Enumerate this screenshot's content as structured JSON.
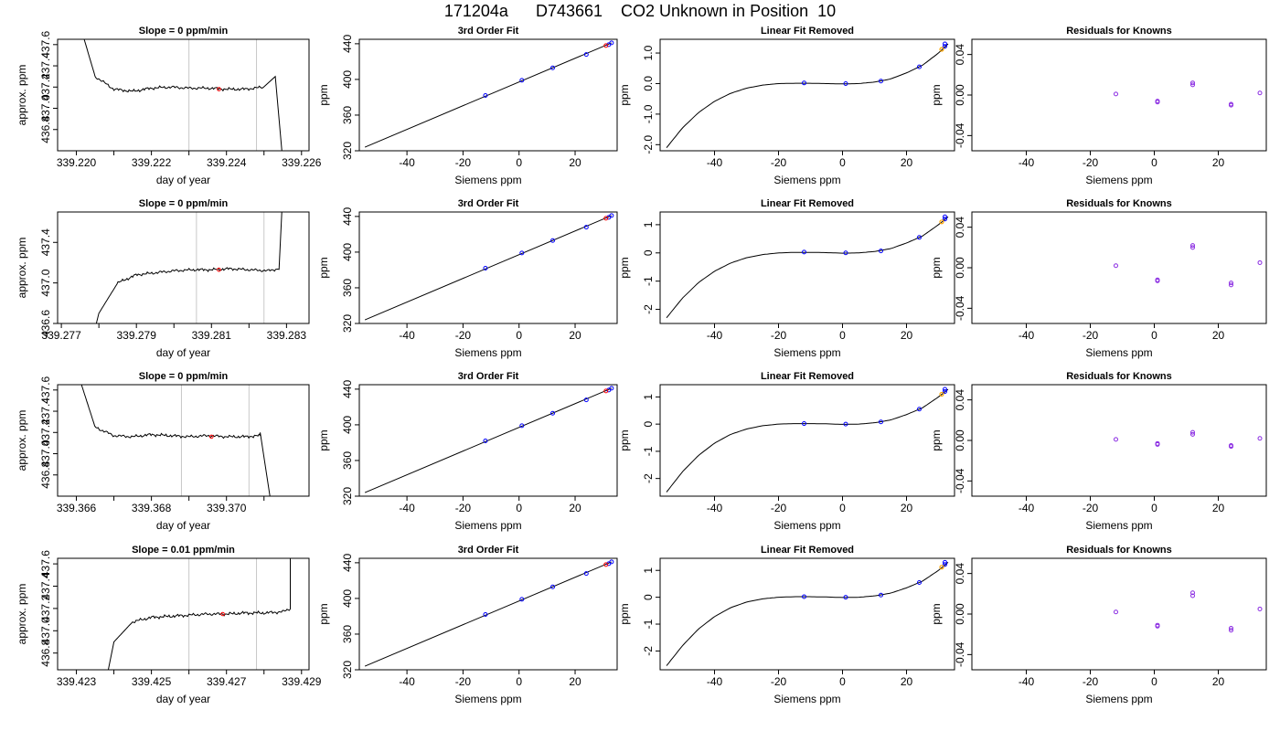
{
  "figure": {
    "title": "171204a      D743661    CO2 Unknown in Position  10"
  },
  "chart_data": [
    {
      "type": "line",
      "panel": "timeseries",
      "row": 0,
      "title": "Slope =  0  ppm/min",
      "xlabel": "day of year",
      "ylabel": "approx. ppm",
      "xlim": [
        339.2195,
        339.2262
      ],
      "ylim": [
        436.6,
        437.65
      ],
      "xticks": [
        339.22,
        339.221,
        339.222,
        339.223,
        339.224,
        339.225,
        339.226
      ],
      "xticklabels": [
        "339.220",
        "",
        "339.222",
        "",
        "339.224",
        "",
        "339.226"
      ],
      "yticks": [
        436.8,
        437.0,
        437.2,
        437.4,
        437.6
      ],
      "yticklabels": [
        "436.8",
        "437.0",
        "437.2",
        "437.4",
        "437.6"
      ],
      "vlines": [
        339.223,
        339.2248
      ],
      "shape": {
        "start": 437.9,
        "start_x": 339.2196,
        "end": 436.5,
        "end_x": 339.2255,
        "rise_x": 339.2253,
        "rise_peak": 437.3
      },
      "x": [
        339.22,
        339.2205,
        339.221,
        339.2215,
        339.222,
        339.2225,
        339.223,
        339.2235,
        339.224,
        339.2245,
        339.225
      ],
      "y": [
        437.9,
        437.3,
        437.18,
        437.16,
        437.19,
        437.2,
        437.19,
        437.19,
        437.18,
        437.18,
        437.2
      ],
      "marker": {
        "x": 339.2238,
        "y": 437.18
      }
    },
    {
      "type": "line",
      "panel": "fit",
      "row": 0,
      "title": "3rd Order Fit",
      "xlabel": "Siemens ppm",
      "ylabel": "ppm",
      "xlim": [
        -57,
        35
      ],
      "ylim": [
        320,
        445
      ],
      "xticks": [
        -40,
        -20,
        0,
        20
      ],
      "yticks": [
        320,
        360,
        400,
        440
      ],
      "line": {
        "x": [
          -55,
          33
        ],
        "y": [
          324,
          441
        ]
      },
      "points": {
        "x": [
          -12,
          1,
          12,
          24,
          32,
          33
        ],
        "y": [
          382,
          399,
          413,
          428,
          439,
          441
        ]
      },
      "unknown": {
        "x": 31,
        "y": 438
      }
    },
    {
      "type": "line",
      "panel": "linear_removed",
      "row": 0,
      "title": "Linear Fit Removed",
      "xlabel": "Siemens ppm",
      "ylabel": "ppm",
      "xlim": [
        -57,
        35
      ],
      "ylim": [
        -2.2,
        1.45
      ],
      "xticks": [
        -40,
        -20,
        0,
        20
      ],
      "yticks": [
        -2.0,
        -1.0,
        0.0,
        1.0
      ],
      "yticklabels": [
        "-2.0",
        "-1.0",
        "0.0",
        "1.0"
      ],
      "curve_x": [
        -55,
        -50,
        -45,
        -40,
        -35,
        -30,
        -25,
        -20,
        -15,
        -10,
        -5,
        0,
        5,
        10,
        15,
        20,
        25,
        30,
        33
      ],
      "curve_y": [
        -2.1,
        -1.45,
        -0.95,
        -0.58,
        -0.32,
        -0.15,
        -0.05,
        0.0,
        0.01,
        0.01,
        0.0,
        -0.01,
        0.0,
        0.05,
        0.15,
        0.35,
        0.6,
        1.0,
        1.3
      ],
      "points": {
        "x": [
          -12,
          1,
          12,
          24,
          32,
          32
        ],
        "y": [
          0.02,
          0.0,
          0.08,
          0.55,
          1.22,
          1.3
        ]
      },
      "unknown": {
        "x": 31,
        "y": 1.12
      }
    },
    {
      "type": "scatter",
      "panel": "residuals",
      "row": 0,
      "title": "Residuals for Knowns",
      "xlabel": "Siemens ppm",
      "ylabel": "ppm",
      "xlim": [
        -57,
        35
      ],
      "ylim": [
        -0.055,
        0.055
      ],
      "xticks": [
        -40,
        -20,
        0,
        20
      ],
      "yticks": [
        -0.04,
        0.0,
        0.04
      ],
      "yticklabels": [
        "-0.04",
        "0.00",
        "0.04"
      ],
      "points": {
        "x": [
          -12,
          1,
          1,
          12,
          12,
          24,
          24,
          33
        ],
        "y": [
          0.001,
          -0.006,
          -0.007,
          0.01,
          0.012,
          -0.009,
          -0.01,
          0.002
        ]
      }
    },
    {
      "type": "line",
      "panel": "timeseries",
      "row": 1,
      "title": "Slope =  0  ppm/min",
      "xlabel": "day of year",
      "ylabel": "approx. ppm",
      "xlim": [
        339.2769,
        339.2836
      ],
      "ylim": [
        436.6,
        437.7
      ],
      "xticks": [
        339.277,
        339.278,
        339.279,
        339.28,
        339.281,
        339.282,
        339.283
      ],
      "xticklabels": [
        "339.277",
        "",
        "339.279",
        "",
        "339.281",
        "",
        "339.283"
      ],
      "yticks": [
        436.6,
        437.0,
        437.4
      ],
      "yticklabels": [
        "436.6",
        "437.0",
        "437.4"
      ],
      "vlines": [
        339.2806,
        339.2824
      ],
      "shape": {
        "start": 436.4,
        "start_x": 339.2778,
        "end": 437.9,
        "end_x": 339.2833,
        "rise_x": 339.2829,
        "rise_peak": 437.9
      },
      "x": [
        339.278,
        339.2785,
        339.279,
        339.2795,
        339.28,
        339.2805,
        339.281,
        339.2815,
        339.282,
        339.2825,
        339.2828
      ],
      "y": [
        436.7,
        437.0,
        437.08,
        437.1,
        437.12,
        437.13,
        437.13,
        437.14,
        437.13,
        437.12,
        437.14
      ],
      "marker": {
        "x": 339.2812,
        "y": 437.13
      }
    },
    {
      "type": "line",
      "panel": "fit",
      "row": 1,
      "title": "3rd Order Fit",
      "xlabel": "Siemens ppm",
      "ylabel": "ppm",
      "xlim": [
        -57,
        35
      ],
      "ylim": [
        320,
        445
      ],
      "xticks": [
        -40,
        -20,
        0,
        20
      ],
      "yticks": [
        320,
        360,
        400,
        440
      ],
      "line": {
        "x": [
          -55,
          33
        ],
        "y": [
          324,
          441
        ]
      },
      "points": {
        "x": [
          -12,
          1,
          12,
          24,
          32,
          33
        ],
        "y": [
          382,
          399,
          413,
          428,
          439,
          441
        ]
      },
      "unknown": {
        "x": 31,
        "y": 438
      }
    },
    {
      "type": "line",
      "panel": "linear_removed",
      "row": 1,
      "title": "Linear Fit Removed",
      "xlabel": "Siemens ppm",
      "ylabel": "ppm",
      "xlim": [
        -57,
        35
      ],
      "ylim": [
        -2.5,
        1.45
      ],
      "xticks": [
        -40,
        -20,
        0,
        20
      ],
      "yticks": [
        -2,
        -1,
        0,
        1
      ],
      "yticklabels": [
        "-2",
        "-1",
        "0",
        "1"
      ],
      "curve_x": [
        -55,
        -50,
        -45,
        -40,
        -35,
        -30,
        -25,
        -20,
        -15,
        -10,
        -5,
        0,
        5,
        10,
        15,
        20,
        25,
        30,
        33
      ],
      "curve_y": [
        -2.3,
        -1.6,
        -1.05,
        -0.65,
        -0.36,
        -0.17,
        -0.06,
        0.0,
        0.02,
        0.02,
        0.01,
        -0.01,
        0.0,
        0.05,
        0.15,
        0.35,
        0.6,
        1.0,
        1.28
      ],
      "points": {
        "x": [
          -12,
          1,
          12,
          24,
          32,
          32
        ],
        "y": [
          0.03,
          0.0,
          0.07,
          0.55,
          1.2,
          1.28
        ]
      },
      "unknown": {
        "x": 31,
        "y": 1.1
      }
    },
    {
      "type": "scatter",
      "panel": "residuals",
      "row": 1,
      "title": "Residuals for Knowns",
      "xlabel": "Siemens ppm",
      "ylabel": "ppm",
      "xlim": [
        -57,
        35
      ],
      "ylim": [
        -0.055,
        0.055
      ],
      "xticks": [
        -40,
        -20,
        0,
        20
      ],
      "yticks": [
        -0.04,
        0.0,
        0.04
      ],
      "yticklabels": [
        "-0.04",
        "0.00",
        "0.04"
      ],
      "points": {
        "x": [
          -12,
          1,
          1,
          12,
          12,
          24,
          24,
          33
        ],
        "y": [
          0.002,
          -0.012,
          -0.013,
          0.02,
          0.022,
          -0.015,
          -0.017,
          0.005
        ]
      }
    },
    {
      "type": "line",
      "panel": "timeseries",
      "row": 2,
      "title": "Slope =  0  ppm/min",
      "xlabel": "day of year",
      "ylabel": "approx. ppm",
      "xlim": [
        339.3655,
        339.3722
      ],
      "ylim": [
        436.6,
        437.65
      ],
      "xticks": [
        339.366,
        339.367,
        339.368,
        339.369,
        339.37,
        339.371
      ],
      "xticklabels": [
        "339.366",
        "",
        "339.368",
        "",
        "339.370",
        ""
      ],
      "yticks": [
        436.8,
        437.0,
        437.2,
        437.4,
        437.6
      ],
      "yticklabels": [
        "436.8",
        "437.0",
        "437.2",
        "437.4",
        "437.6"
      ],
      "vlines": [
        339.3688,
        339.3706
      ],
      "shape": {
        "start": 437.9,
        "start_x": 339.3657,
        "end": 436.5,
        "end_x": 339.3712,
        "rise_x": 339.3709,
        "rise_peak": 437.2
      },
      "x": [
        339.366,
        339.3665,
        339.367,
        339.3675,
        339.368,
        339.3685,
        339.369,
        339.3695,
        339.37,
        339.3705,
        339.3709
      ],
      "y": [
        437.8,
        437.25,
        437.17,
        437.16,
        437.18,
        437.17,
        437.16,
        437.17,
        437.16,
        437.16,
        437.17
      ],
      "marker": {
        "x": 339.3696,
        "y": 437.16
      }
    },
    {
      "type": "line",
      "panel": "fit",
      "row": 2,
      "title": "3rd Order Fit",
      "xlabel": "Siemens ppm",
      "ylabel": "ppm",
      "xlim": [
        -57,
        35
      ],
      "ylim": [
        320,
        445
      ],
      "xticks": [
        -40,
        -20,
        0,
        20
      ],
      "yticks": [
        320,
        360,
        400,
        440
      ],
      "line": {
        "x": [
          -55,
          33
        ],
        "y": [
          324,
          441
        ]
      },
      "points": {
        "x": [
          -12,
          1,
          12,
          24,
          32,
          33
        ],
        "y": [
          382,
          399,
          413,
          428,
          439,
          441
        ]
      },
      "unknown": {
        "x": 31,
        "y": 438
      }
    },
    {
      "type": "line",
      "panel": "linear_removed",
      "row": 2,
      "title": "Linear Fit Removed",
      "xlabel": "Siemens ppm",
      "ylabel": "ppm",
      "xlim": [
        -57,
        35
      ],
      "ylim": [
        -2.65,
        1.45
      ],
      "xticks": [
        -40,
        -20,
        0,
        20
      ],
      "yticks": [
        -2,
        -1,
        0,
        1
      ],
      "yticklabels": [
        "-2",
        "-1",
        "0",
        "1"
      ],
      "curve_x": [
        -55,
        -50,
        -45,
        -40,
        -35,
        -30,
        -25,
        -20,
        -15,
        -10,
        -5,
        0,
        5,
        10,
        15,
        20,
        25,
        30,
        33
      ],
      "curve_y": [
        -2.5,
        -1.75,
        -1.15,
        -0.7,
        -0.38,
        -0.18,
        -0.06,
        0.0,
        0.02,
        0.02,
        0.01,
        -0.01,
        0.0,
        0.05,
        0.15,
        0.35,
        0.6,
        1.0,
        1.28
      ],
      "points": {
        "x": [
          -12,
          1,
          12,
          24,
          32,
          32
        ],
        "y": [
          0.02,
          0.0,
          0.08,
          0.55,
          1.2,
          1.28
        ]
      },
      "unknown": {
        "x": 31,
        "y": 1.1
      }
    },
    {
      "type": "scatter",
      "panel": "residuals",
      "row": 2,
      "title": "Residuals for Knowns",
      "xlabel": "Siemens ppm",
      "ylabel": "ppm",
      "xlim": [
        -57,
        35
      ],
      "ylim": [
        -0.055,
        0.055
      ],
      "xticks": [
        -40,
        -20,
        0,
        20
      ],
      "yticks": [
        -0.04,
        0.0,
        0.04
      ],
      "yticklabels": [
        "-0.04",
        "0.00",
        "0.04"
      ],
      "points": {
        "x": [
          -12,
          1,
          1,
          12,
          12,
          24,
          24,
          33
        ],
        "y": [
          0.001,
          -0.003,
          -0.004,
          0.006,
          0.008,
          -0.005,
          -0.006,
          0.002
        ]
      }
    },
    {
      "type": "line",
      "panel": "timeseries",
      "row": 3,
      "title": "Slope =  0.01  ppm/min",
      "xlabel": "day of year",
      "ylabel": "approx. ppm",
      "xlim": [
        339.4225,
        339.4292
      ],
      "ylim": [
        436.65,
        437.65
      ],
      "xticks": [
        339.423,
        339.424,
        339.425,
        339.426,
        339.427,
        339.428,
        339.429
      ],
      "xticklabels": [
        "339.423",
        "",
        "339.425",
        "",
        "339.427",
        "",
        "339.429"
      ],
      "yticks": [
        436.8,
        437.0,
        437.2,
        437.4,
        437.6
      ],
      "yticklabels": [
        "436.8",
        "437.0",
        "437.2",
        "437.4",
        "437.6"
      ],
      "vlines": [
        339.426,
        339.4278
      ],
      "shape": {
        "start": 436.4,
        "start_x": 339.4237,
        "end": 437.9,
        "end_x": 339.429,
        "rise_x": 339.4287,
        "rise_peak": 437.9
      },
      "x": [
        339.424,
        339.4245,
        339.425,
        339.4255,
        339.426,
        339.4265,
        339.427,
        339.4275,
        339.428,
        339.4285,
        339.4287
      ],
      "y": [
        436.9,
        437.08,
        437.12,
        437.13,
        437.14,
        437.15,
        437.15,
        437.16,
        437.16,
        437.17,
        437.2
      ],
      "marker": {
        "x": 339.4269,
        "y": 437.15
      }
    },
    {
      "type": "line",
      "panel": "fit",
      "row": 3,
      "title": "3rd Order Fit",
      "xlabel": "Siemens ppm",
      "ylabel": "ppm",
      "xlim": [
        -57,
        35
      ],
      "ylim": [
        320,
        445
      ],
      "xticks": [
        -40,
        -20,
        0,
        20
      ],
      "yticks": [
        320,
        360,
        400,
        440
      ],
      "line": {
        "x": [
          -55,
          33
        ],
        "y": [
          324,
          441
        ]
      },
      "points": {
        "x": [
          -12,
          1,
          12,
          24,
          32,
          33
        ],
        "y": [
          382,
          399,
          413,
          428,
          439,
          441
        ]
      },
      "unknown": {
        "x": 31,
        "y": 438
      }
    },
    {
      "type": "line",
      "panel": "linear_removed",
      "row": 3,
      "title": "Linear Fit Removed",
      "xlabel": "Siemens ppm",
      "ylabel": "ppm",
      "xlim": [
        -57,
        35
      ],
      "ylim": [
        -2.7,
        1.45
      ],
      "xticks": [
        -40,
        -20,
        0,
        20
      ],
      "yticks": [
        -2,
        -1,
        0,
        1
      ],
      "yticklabels": [
        "-2",
        "-1",
        "0",
        "1"
      ],
      "curve_x": [
        -55,
        -50,
        -45,
        -40,
        -35,
        -30,
        -25,
        -20,
        -15,
        -10,
        -5,
        0,
        5,
        10,
        15,
        20,
        25,
        30,
        33
      ],
      "curve_y": [
        -2.55,
        -1.8,
        -1.18,
        -0.72,
        -0.39,
        -0.18,
        -0.06,
        0.0,
        0.02,
        0.02,
        0.01,
        -0.01,
        0.0,
        0.05,
        0.15,
        0.35,
        0.6,
        1.0,
        1.3
      ],
      "points": {
        "x": [
          -12,
          1,
          12,
          24,
          32,
          32
        ],
        "y": [
          0.02,
          0.0,
          0.08,
          0.55,
          1.22,
          1.3
        ]
      },
      "unknown": {
        "x": 31,
        "y": 1.12
      }
    },
    {
      "type": "scatter",
      "panel": "residuals",
      "row": 3,
      "title": "Residuals for Knowns",
      "xlabel": "Siemens ppm",
      "ylabel": "ppm",
      "xlim": [
        -57,
        35
      ],
      "ylim": [
        -0.055,
        0.055
      ],
      "xticks": [
        -40,
        -20,
        0,
        20
      ],
      "yticks": [
        -0.04,
        0.0,
        0.04
      ],
      "yticklabels": [
        "-0.04",
        "0.00",
        "0.04"
      ],
      "points": {
        "x": [
          -12,
          1,
          1,
          12,
          12,
          24,
          24,
          33
        ],
        "y": [
          0.002,
          -0.011,
          -0.012,
          0.018,
          0.021,
          -0.014,
          -0.016,
          0.005
        ]
      }
    }
  ],
  "colors": {
    "axis": "#000000",
    "curve": "#000000",
    "vline": "#c8c8c8",
    "known_point": "#0000ff",
    "residual_point": "#8a2be2",
    "marker_point": "#ff0000",
    "unknown_point": "#ffa500"
  }
}
